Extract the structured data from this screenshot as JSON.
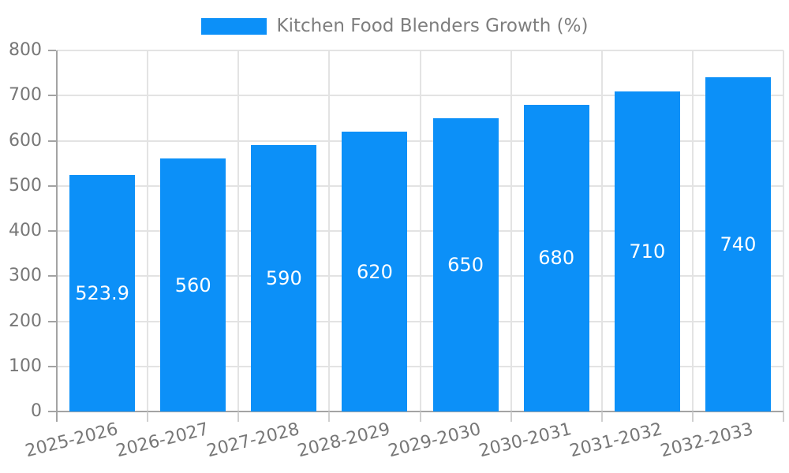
{
  "legend": {
    "label": "Kitchen Food Blenders Growth (%)"
  },
  "colors": {
    "bar": "#0c90f8",
    "axis_text": "#777777",
    "legend_text": "#7e7e7e",
    "grid_line": "#e3e3e3",
    "axis_line": "#a3a3a3",
    "x_tick": "#cfcfcf",
    "value_label_text": "#ffffff",
    "background": "#ffffff"
  },
  "chart_data": {
    "type": "bar",
    "title": "",
    "categories": [
      "2025-2026",
      "2026-2027",
      "2027-2028",
      "2028-2029",
      "2029-2030",
      "2030-2031",
      "2031-2032",
      "2032-2033"
    ],
    "series": [
      {
        "name": "Kitchen Food Blenders Growth (%)",
        "values": [
          523.9,
          560,
          590,
          620,
          650,
          680,
          710,
          740
        ]
      }
    ],
    "value_labels": [
      "523.9",
      "560",
      "590",
      "620",
      "650",
      "680",
      "710",
      "740"
    ],
    "xlabel": "",
    "ylabel": "",
    "ylim": [
      0,
      800
    ],
    "ytick_interval": 100,
    "yticks": [
      0,
      100,
      200,
      300,
      400,
      500,
      600,
      700,
      800
    ],
    "grid": true,
    "legend_position": "top-center",
    "bar_color": "#0c90f8",
    "value_label_position": "inside-center",
    "xtick_label_rotation_deg": -14
  }
}
